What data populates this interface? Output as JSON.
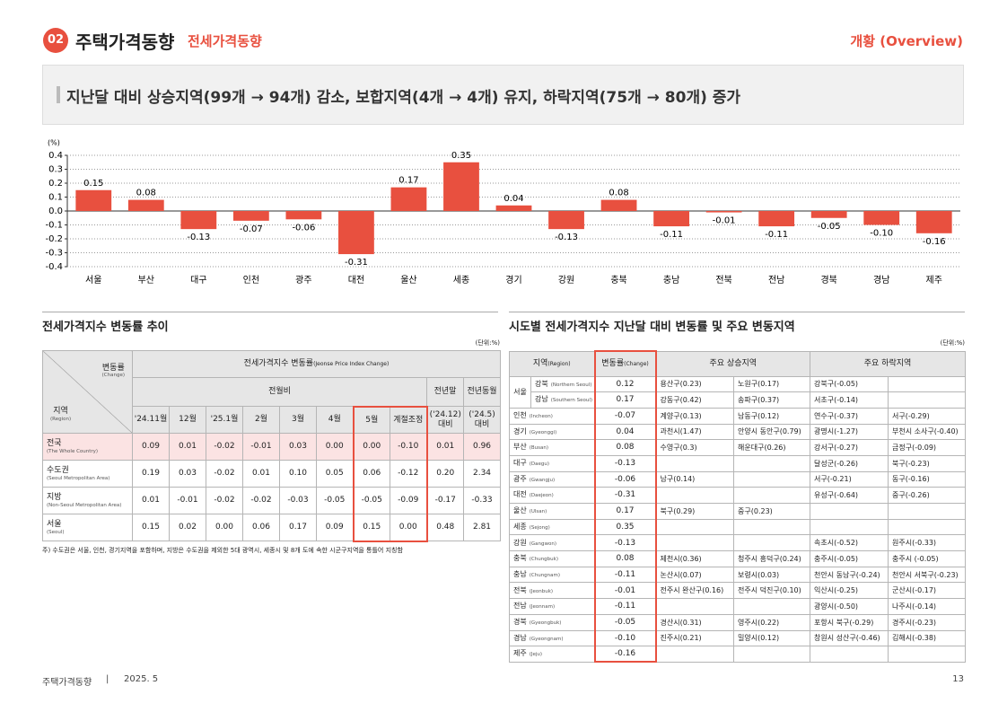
{
  "header": {
    "number": "02",
    "title": "주택가격동향",
    "subtitle": "전세가격동향",
    "section": "개황 (Overview)"
  },
  "headline": "지난달 대비 상승지역(99개 → 94개) 감소, 보합지역(4개 → 4개) 유지, 하락지역(75개 → 80개) 증가",
  "chart_data": {
    "type": "bar",
    "unit_label": "(%)",
    "categories": [
      "서울",
      "부산",
      "대구",
      "인천",
      "광주",
      "대전",
      "울산",
      "세종",
      "경기",
      "강원",
      "충북",
      "충남",
      "전북",
      "전남",
      "경북",
      "경남",
      "제주"
    ],
    "values": [
      0.15,
      0.08,
      -0.13,
      -0.07,
      -0.06,
      -0.31,
      0.17,
      0.35,
      0.04,
      -0.13,
      0.08,
      -0.11,
      -0.01,
      -0.11,
      -0.05,
      -0.1,
      -0.16
    ],
    "value_labels": [
      "0.15",
      "0.08",
      "-0.13",
      "-0.07",
      "-0.06",
      "-0.31",
      "0.17",
      "0.35",
      "0.04",
      "-0.13",
      "0.08",
      "-0.11",
      "-0.01",
      "-0.11",
      "-0.05",
      "-0.10",
      "-0.16"
    ],
    "color": "#e8503f",
    "ylim": [
      -0.4,
      0.4
    ],
    "yticks": [
      0.4,
      0.3,
      0.2,
      0.1,
      {
        "value": 0,
        "label": "0.0"
      },
      -0.1,
      -0.2,
      -0.3,
      -0.4
    ],
    "grid": true
  },
  "table1": {
    "title": "전세가격지수 변동률 추이",
    "unit": "(단위:%)",
    "corner": {
      "change": "변동률",
      "change_en": "(Change)",
      "region": "지역",
      "region_en": "(Region)"
    },
    "group": "전세가격지수 변동률",
    "group_en": "(Jeonse Price Index Change)",
    "monthly": "전월비",
    "prev_year_end": "전년말",
    "prev_year_month": "전년동월",
    "columns": [
      "'24.11월",
      "12월",
      "'25.1월",
      "2월",
      "3월",
      "4월",
      "5월",
      "계절조정",
      "('24.12) 대비",
      "('24.5) 대비"
    ],
    "rows": [
      {
        "name": "전국",
        "name_en": "(The Whole Country)",
        "values": [
          "0.09",
          "0.01",
          "-0.02",
          "-0.01",
          "0.03",
          "0.00",
          "0.00",
          "-0.10",
          "0.01",
          "0.96"
        ]
      },
      {
        "name": "수도권",
        "name_en": "(Seoul Metropolitan Area)",
        "values": [
          "0.19",
          "0.03",
          "-0.02",
          "0.01",
          "0.10",
          "0.05",
          "0.06",
          "-0.12",
          "0.20",
          "2.34"
        ]
      },
      {
        "name": "지방",
        "name_en": "(Non-Seoul Metropolitan Area)",
        "values": [
          "0.01",
          "-0.01",
          "-0.02",
          "-0.02",
          "-0.03",
          "-0.05",
          "-0.05",
          "-0.09",
          "-0.17",
          "-0.33"
        ]
      },
      {
        "name": "서울",
        "name_en": "(Seoul)",
        "values": [
          "0.15",
          "0.02",
          "0.00",
          "0.06",
          "0.17",
          "0.09",
          "0.15",
          "0.00",
          "0.48",
          "2.81"
        ]
      }
    ],
    "note": "주) 수도권은 서울, 인천, 경기지역을 포함하며, 지방은 수도권을 제외한 5대 광역시, 세종시 및 8개 도에 속한 시군구지역을 통틀어 지칭함"
  },
  "table2": {
    "title": "시도별 전세가격지수 지난달 대비 변동률 및 주요 변동지역",
    "unit": "(단위:%)",
    "region_header": "지역",
    "region_header_en": "(Region)",
    "change_header": "변동률",
    "change_header_en": "(Change)",
    "up_header": "주요 상승지역",
    "down_header": "주요 하락지역",
    "rows": [
      {
        "name": "서울",
        "subrows": [
          {
            "name": "강북",
            "name_en": "(Northern Seoul)",
            "change": "0.12",
            "up": [
              "용산구(0.23)",
              "노원구(0.17)"
            ],
            "down": [
              "강북구(-0.05)"
            ]
          },
          {
            "name": "강남",
            "name_en": "(Southern Seoul)",
            "change": "0.17",
            "up": [
              "강동구(0.42)",
              "송파구(0.37)"
            ],
            "down": [
              "서초구(-0.14)"
            ]
          }
        ]
      },
      {
        "name": "인천",
        "name_en": "(Incheon)",
        "change": "-0.07",
        "up": [
          "계양구(0.13)",
          "남동구(0.12)"
        ],
        "down": [
          "연수구(-0.37)",
          "서구(-0.29)"
        ]
      },
      {
        "name": "경기",
        "name_en": "(Gyeonggi)",
        "change": "0.04",
        "up": [
          "과천시(1.47)",
          "안양시 동안구(0.79)"
        ],
        "down": [
          "광명시(-1.27)",
          "부천시 소사구(-0.40)"
        ]
      },
      {
        "name": "부산",
        "name_en": "(Busan)",
        "change": "0.08",
        "up": [
          "수영구(0.3)",
          "해운대구(0.26)"
        ],
        "down": [
          "강서구(-0.27)",
          "금정구(-0.09)"
        ]
      },
      {
        "name": "대구",
        "name_en": "(Daegu)",
        "change": "-0.13",
        "up": [],
        "down": [
          "달성군(-0.26)",
          "북구(-0.23)"
        ]
      },
      {
        "name": "광주",
        "name_en": "(Gwangju)",
        "change": "-0.06",
        "up": [
          "남구(0.14)"
        ],
        "down": [
          "서구(-0.21)",
          "동구(-0.16)"
        ]
      },
      {
        "name": "대전",
        "name_en": "(Daejeon)",
        "change": "-0.31",
        "up": [],
        "down": [
          "유성구(-0.64)",
          "중구(-0.26)"
        ]
      },
      {
        "name": "울산",
        "name_en": "(Ulsan)",
        "change": "0.17",
        "up": [
          "북구(0.29)",
          "중구(0.23)"
        ],
        "down": []
      },
      {
        "name": "세종",
        "name_en": "(Sejong)",
        "change": "0.35",
        "up": [],
        "down": []
      },
      {
        "name": "강원",
        "name_en": "(Gangwon)",
        "change": "-0.13",
        "up": [],
        "down": [
          "속초시(-0.52)",
          "원주시(-0.33)"
        ]
      },
      {
        "name": "충북",
        "name_en": "(Chungbuk)",
        "change": "0.08",
        "up": [
          "제천시(0.36)",
          "청주시 흥덕구(0.24)"
        ],
        "down": [
          "충주시(-0.05)",
          "충주시 (-0.05)"
        ]
      },
      {
        "name": "충남",
        "name_en": "(Chungnam)",
        "change": "-0.11",
        "up": [
          "논산시(0.07)",
          "보령시(0.03)"
        ],
        "down": [
          "천안시 동남구(-0.24)",
          "천안시 서북구(-0.23)"
        ]
      },
      {
        "name": "전북",
        "name_en": "(Jeonbuk)",
        "change": "-0.01",
        "up": [
          "전주시 완산구(0.16)",
          "전주시 덕진구(0.10)"
        ],
        "down": [
          "익산시(-0.25)",
          "군산시(-0.17)"
        ]
      },
      {
        "name": "전남",
        "name_en": "(Jeonnam)",
        "change": "-0.11",
        "up": [],
        "down": [
          "광양시(-0.50)",
          "나주시(-0.14)"
        ]
      },
      {
        "name": "경북",
        "name_en": "(Gyeongbuk)",
        "change": "-0.05",
        "up": [
          "경산시(0.31)",
          "영주시(0.22)"
        ],
        "down": [
          "포항시 북구(-0.29)",
          "경주시(-0.23)"
        ]
      },
      {
        "name": "경남",
        "name_en": "(Gyeongnam)",
        "change": "-0.10",
        "up": [
          "진주시(0.21)",
          "밀양시(0.12)"
        ],
        "down": [
          "창원시 성산구(-0.46)",
          "김해시(-0.38)"
        ]
      },
      {
        "name": "제주",
        "name_en": "(Jeju)",
        "change": "-0.16",
        "up": [],
        "down": []
      }
    ]
  },
  "footer": {
    "title": "주택가격동향",
    "date": "2025. 5",
    "page": "13"
  }
}
